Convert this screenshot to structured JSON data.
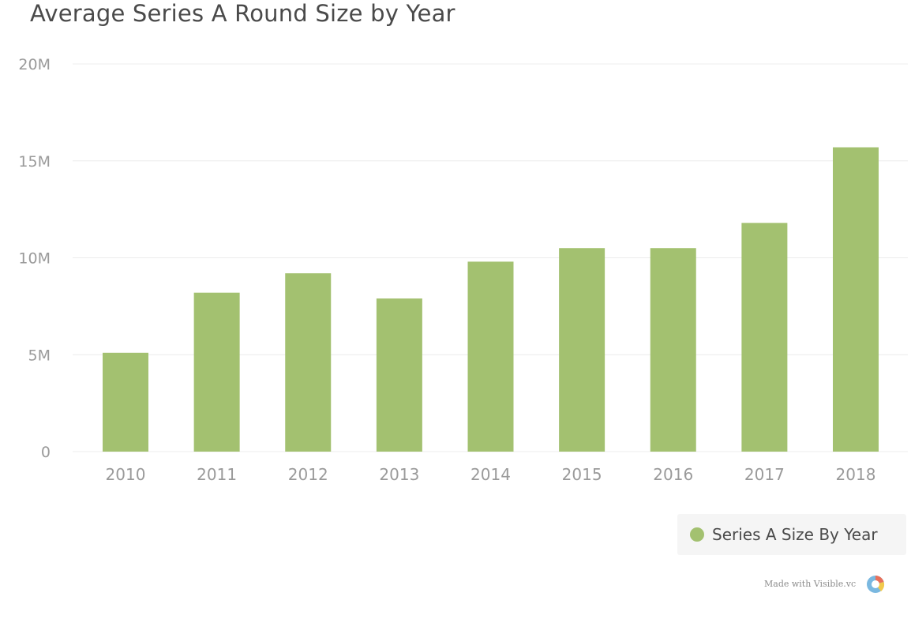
{
  "chart_data": {
    "type": "bar",
    "title": "Average Series A Round Size by Year",
    "xlabel": "",
    "ylabel": "",
    "categories": [
      "2010",
      "2011",
      "2012",
      "2013",
      "2014",
      "2015",
      "2016",
      "2017",
      "2018"
    ],
    "series": [
      {
        "name": "Series A Size By Year",
        "values": [
          5.1,
          8.2,
          9.2,
          7.9,
          9.8,
          10.5,
          10.5,
          11.8,
          15.7
        ]
      }
    ],
    "unit": "M",
    "ylim": [
      0,
      20
    ],
    "yticks": [
      0,
      5,
      10,
      15,
      20
    ],
    "ytick_labels": [
      "0",
      "5M",
      "10M",
      "15M",
      "20M"
    ],
    "grid": true,
    "legend_position": "bottom-right",
    "colors": {
      "bar": "#a3c170",
      "grid": "#ececec",
      "tick_text": "#9a9a9a"
    }
  },
  "legend": {
    "label": "Series A Size By Year"
  },
  "credit": {
    "text": "Made with Visible.vc"
  }
}
